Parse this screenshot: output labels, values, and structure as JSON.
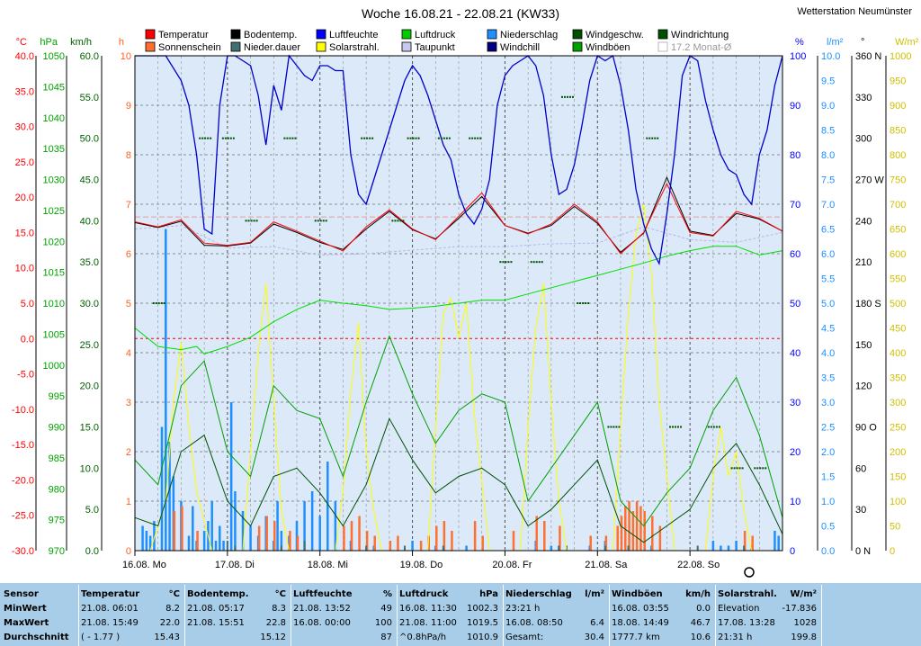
{
  "title": "Woche 16.08.21 - 22.08.21 (KW33)",
  "station": "Wetterstation Neumünster",
  "legend": [
    {
      "label": "Temperatur",
      "color": "#ff0000"
    },
    {
      "label": "Bodentemp.",
      "color": "#000000"
    },
    {
      "label": "Luftfeuchte",
      "color": "#0000ff"
    },
    {
      "label": "Luftdruck",
      "color": "#00cc00"
    },
    {
      "label": "Niederschlag",
      "color": "#1e8fff"
    },
    {
      "label": "Windgeschw.",
      "color": "#005000"
    },
    {
      "label": "Windrichtung",
      "color": "#005000"
    },
    {
      "label": "Sonnenschein",
      "color": "#ff7030"
    },
    {
      "label": "Nieder.dauer",
      "color": "#407070"
    },
    {
      "label": "Solarstrahl.",
      "color": "#ffff00"
    },
    {
      "label": "Taupunkt",
      "color": "#c8c8f0"
    },
    {
      "label": "Windchill",
      "color": "#000080"
    },
    {
      "label": "Windböen",
      "color": "#00a000"
    },
    {
      "label": "17.2 Monat-Ø",
      "color": "#ffffff"
    }
  ],
  "axis_units": {
    "temp": "°C",
    "press": "hPa",
    "wind": "km/h",
    "sun": "h",
    "hum": "%",
    "rain": "l/m²",
    "dir": "°",
    "solar": "W/m²"
  },
  "axes": {
    "temp": [
      "40.0",
      "35.0",
      "30.0",
      "25.0",
      "20.0",
      "15.0",
      "10.0",
      "5.0",
      "0.0",
      "-5.0",
      "-10.0",
      "-15.0",
      "-20.0",
      "-25.0",
      "-30.0"
    ],
    "press": [
      "1050",
      "1045",
      "1040",
      "1035",
      "1030",
      "1025",
      "1020",
      "1015",
      "1010",
      "1005",
      "1000",
      "995",
      "990",
      "985",
      "980",
      "975",
      "970"
    ],
    "wind": [
      "60.0",
      "55.0",
      "50.0",
      "45.0",
      "40.0",
      "35.0",
      "30.0",
      "25.0",
      "20.0",
      "15.0",
      "10.0",
      "5.0",
      "0.0"
    ],
    "sun": [
      "10",
      "9",
      "8",
      "7",
      "6",
      "5",
      "4",
      "3",
      "2",
      "1",
      "0"
    ],
    "hum": [
      "100",
      "90",
      "80",
      "70",
      "60",
      "50",
      "40",
      "30",
      "20",
      "10",
      "0"
    ],
    "rain": [
      "10.0",
      "9.5",
      "9.0",
      "8.5",
      "8.0",
      "7.5",
      "7.0",
      "6.5",
      "6.0",
      "5.5",
      "5.0",
      "4.5",
      "4.0",
      "3.5",
      "3.0",
      "2.5",
      "2.0",
      "1.5",
      "1.0",
      "0.5",
      "0.0"
    ],
    "dir": [
      "360 N",
      "330",
      "300",
      "270 W",
      "240",
      "210",
      "180 S",
      "150",
      "120",
      "90 O",
      "60",
      "30",
      "0 N"
    ],
    "solar": [
      "1000",
      "950",
      "900",
      "850",
      "800",
      "750",
      "700",
      "650",
      "600",
      "550",
      "500",
      "450",
      "400",
      "350",
      "300",
      "250",
      "200",
      "150",
      "100",
      "50",
      "0"
    ]
  },
  "chart_data": {
    "type": "line",
    "title": "Woche 16.08.21 - 22.08.21 (KW33)",
    "x_days": [
      "16.08.  Mo",
      "17.08.  Di",
      "18.08.  Mi",
      "19.08.  Do",
      "20.08.  Fr",
      "21.08.  Sa",
      "22.08.  So"
    ],
    "x_range_hours": [
      0,
      168
    ],
    "month_avg_temp": 17.2,
    "series": [
      {
        "name": "Temperatur",
        "unit": "°C",
        "x": [
          0,
          6,
          12,
          18,
          24,
          30,
          36,
          42,
          48,
          54,
          60,
          66,
          72,
          78,
          84,
          90,
          96,
          102,
          108,
          114,
          120,
          126,
          132,
          138,
          144,
          150,
          156,
          162,
          168
        ],
        "values": [
          16.5,
          15.8,
          16.8,
          13.5,
          13.2,
          13.6,
          16.5,
          15.2,
          13.8,
          12.4,
          15.8,
          18.2,
          15.5,
          14.0,
          17.3,
          20.6,
          16.0,
          14.8,
          16.2,
          19.0,
          16.5,
          12.0,
          15.0,
          21.9,
          15.0,
          14.5,
          18.0,
          17.0,
          15.2
        ]
      },
      {
        "name": "Bodentemp.",
        "unit": "°C",
        "x": [
          0,
          6,
          12,
          18,
          24,
          30,
          36,
          42,
          48,
          54,
          60,
          66,
          72,
          78,
          84,
          90,
          96,
          102,
          108,
          114,
          120,
          126,
          132,
          138,
          144,
          150,
          156,
          162,
          168
        ],
        "values": [
          16.4,
          15.7,
          16.6,
          13.2,
          13.1,
          13.5,
          16.2,
          15.0,
          13.6,
          12.6,
          15.5,
          18.0,
          15.4,
          14.1,
          17.0,
          20.1,
          16.0,
          14.9,
          16.0,
          18.7,
          16.3,
          12.2,
          14.9,
          22.8,
          15.2,
          14.6,
          17.7,
          16.9,
          15.2
        ]
      },
      {
        "name": "Taupunkt",
        "unit": "°C",
        "x": [
          0,
          12,
          24,
          36,
          48,
          60,
          72,
          84,
          96,
          108,
          120,
          132,
          144,
          156,
          168
        ],
        "values": [
          15.5,
          16.0,
          12.8,
          13.0,
          11.8,
          12.0,
          12.5,
          13.0,
          13.0,
          13.4,
          13.5,
          15.8,
          14.0,
          13.6,
          15.0
        ]
      },
      {
        "name": "Luftfeuchte",
        "unit": "%",
        "x": [
          0,
          4,
          8,
          12,
          14,
          16,
          18,
          20,
          22,
          24,
          26,
          28,
          30,
          32,
          34,
          36,
          38,
          40,
          42,
          44,
          46,
          48,
          50,
          52,
          54,
          56,
          58,
          60,
          62,
          64,
          66,
          68,
          70,
          72,
          74,
          76,
          78,
          80,
          82,
          84,
          86,
          88,
          90,
          92,
          94,
          96,
          98,
          100,
          102,
          104,
          106,
          108,
          110,
          112,
          114,
          116,
          118,
          120,
          122,
          124,
          126,
          128,
          130,
          132,
          134,
          136,
          138,
          140,
          142,
          144,
          146,
          148,
          150,
          152,
          154,
          156,
          158,
          160,
          162,
          164,
          166,
          168
        ],
        "values": [
          100,
          100,
          100,
          95,
          90,
          80,
          65,
          64,
          90,
          100,
          100,
          99,
          98,
          92,
          82,
          94,
          89,
          100,
          98,
          96,
          95,
          98,
          98,
          97,
          97,
          80,
          72,
          70,
          75,
          80,
          85,
          90,
          95,
          98,
          96,
          92,
          87,
          82,
          79,
          72,
          68,
          66,
          69,
          75,
          90,
          96,
          98,
          99,
          100,
          98,
          92,
          80,
          72,
          73,
          78,
          86,
          95,
          100,
          99,
          100,
          94,
          85,
          73,
          66,
          61,
          58,
          68,
          80,
          96,
          100,
          99,
          91,
          85,
          80,
          77,
          76,
          72,
          70,
          80,
          85,
          94,
          100
        ]
      },
      {
        "name": "Luftdruck",
        "unit": "hPa",
        "x": [
          0,
          6,
          12,
          16,
          18,
          24,
          30,
          36,
          42,
          48,
          54,
          60,
          66,
          72,
          78,
          84,
          90,
          96,
          102,
          108,
          114,
          120,
          126,
          132,
          138,
          144,
          150,
          156,
          162,
          168
        ],
        "values": [
          1006.0,
          1003.0,
          1002.5,
          1003.0,
          1001.8,
          1003.0,
          1004.5,
          1007.0,
          1009.0,
          1010.5,
          1010.0,
          1009.6,
          1009.0,
          1009.2,
          1009.5,
          1010.0,
          1010.5,
          1010.5,
          1011.5,
          1012.5,
          1013.5,
          1014.5,
          1015.5,
          1016.5,
          1017.6,
          1018.5,
          1019.2,
          1019.2,
          1017.8,
          1018.5
        ]
      },
      {
        "name": "Windgeschw.",
        "unit": "km/h",
        "x": [
          0,
          6,
          12,
          18,
          24,
          30,
          36,
          42,
          48,
          54,
          60,
          66,
          72,
          78,
          84,
          90,
          96,
          102,
          108,
          114,
          120,
          126,
          132,
          138,
          144,
          150,
          156,
          162,
          168
        ],
        "values": [
          4,
          3,
          12,
          14,
          6,
          3,
          9,
          10,
          7,
          3,
          8,
          16,
          11,
          7,
          9,
          10,
          8,
          3,
          5,
          8,
          11,
          3,
          1,
          3,
          5,
          10,
          13,
          8,
          2
        ]
      },
      {
        "name": "Windböen",
        "unit": "km/h",
        "x": [
          0,
          6,
          12,
          18,
          24,
          30,
          36,
          42,
          48,
          54,
          60,
          66,
          72,
          78,
          84,
          90,
          96,
          102,
          108,
          114,
          120,
          126,
          132,
          138,
          144,
          150,
          156,
          162,
          168
        ],
        "values": [
          11,
          8,
          20,
          23,
          12,
          9,
          20,
          17,
          16,
          9,
          18,
          26,
          19,
          13,
          17,
          19,
          18,
          6,
          10,
          14,
          18,
          6,
          3,
          7,
          10,
          17,
          21,
          14,
          4
        ]
      },
      {
        "name": "Solarstrahl.",
        "unit": "W/m²",
        "x": [
          0,
          4,
          8,
          10,
          12,
          14,
          16,
          18,
          20,
          22,
          24,
          28,
          30,
          32,
          34,
          36,
          38,
          40,
          44,
          48,
          52,
          54,
          56,
          58,
          60,
          62,
          64,
          68,
          72,
          76,
          78,
          80,
          82,
          84,
          86,
          88,
          92,
          96,
          100,
          102,
          104,
          106,
          108,
          110,
          112,
          116,
          120,
          124,
          126,
          128,
          130,
          132,
          134,
          136,
          140,
          144,
          148,
          150,
          152,
          154,
          156,
          158,
          160,
          164,
          168
        ],
        "values": [
          0,
          0,
          100,
          300,
          420,
          250,
          120,
          60,
          0,
          0,
          0,
          0,
          200,
          400,
          540,
          300,
          80,
          0,
          0,
          0,
          0,
          120,
          320,
          460,
          200,
          80,
          0,
          0,
          0,
          0,
          250,
          480,
          510,
          430,
          500,
          280,
          0,
          0,
          0,
          250,
          450,
          540,
          300,
          100,
          0,
          0,
          0,
          0,
          250,
          480,
          640,
          700,
          560,
          300,
          0,
          0,
          0,
          150,
          250,
          150,
          200,
          80,
          0,
          0,
          0
        ]
      },
      {
        "name": "Windrichtung",
        "unit": "°",
        "x": [
          6,
          18,
          24,
          30,
          40,
          48,
          60,
          68,
          72,
          80,
          88,
          96,
          104,
          112,
          116,
          124,
          134,
          140,
          150,
          156,
          162
        ],
        "values": [
          180,
          300,
          300,
          240,
          300,
          240,
          300,
          240,
          300,
          300,
          300,
          210,
          210,
          330,
          180,
          90,
          300,
          90,
          90,
          60,
          60
        ]
      },
      {
        "name": "Niederschlag",
        "unit": "l/m²",
        "x": [
          2,
          3,
          4,
          5,
          7,
          8,
          9,
          10,
          12,
          14,
          15,
          16,
          18,
          19,
          20,
          21,
          22,
          23,
          25,
          26,
          28,
          30,
          32,
          34,
          36,
          37,
          38,
          40,
          42,
          44,
          46,
          48,
          50,
          52,
          56,
          62,
          72,
          78,
          86,
          104,
          108,
          110,
          118,
          122,
          134,
          150,
          152,
          154,
          156,
          160,
          166,
          167
        ],
        "values": [
          0.5,
          0.4,
          0.3,
          0.6,
          2.5,
          6.5,
          2.2,
          1.5,
          1.0,
          0.3,
          0.9,
          0.2,
          0.4,
          0.6,
          1.0,
          0.2,
          0.5,
          0.2,
          3.0,
          1.2,
          0.8,
          0.5,
          0.3,
          0.7,
          0.2,
          1.0,
          0.4,
          0.3,
          0.6,
          1.0,
          1.2,
          0.7,
          1.8,
          1.0,
          0.2,
          0.1,
          0.2,
          0.1,
          0.1,
          0.2,
          0.1,
          0.1,
          0.1,
          0.2,
          0.1,
          0.2,
          0.1,
          0.1,
          0.2,
          0.1,
          0.4,
          0.3
        ]
      },
      {
        "name": "Sonnenschein",
        "unit": "h",
        "x": [
          10,
          12,
          16,
          32,
          34,
          36,
          40,
          42,
          54,
          56,
          58,
          60,
          62,
          66,
          68,
          74,
          76,
          78,
          80,
          82,
          88,
          90,
          98,
          104,
          106,
          110,
          118,
          122,
          125,
          126,
          127,
          128,
          129,
          130,
          131,
          132,
          134,
          136,
          158,
          160
        ],
        "values": [
          0.8,
          0.9,
          0.4,
          0.5,
          0.7,
          0.6,
          0.4,
          0.3,
          0.5,
          0.6,
          0.7,
          0.4,
          0.3,
          0.2,
          0.3,
          0.2,
          0.3,
          0.5,
          0.6,
          0.4,
          0.6,
          0.3,
          0.4,
          0.7,
          0.6,
          0.5,
          0.3,
          0.3,
          0.5,
          0.7,
          0.9,
          1.0,
          0.8,
          1.0,
          0.9,
          0.8,
          0.7,
          0.5,
          0.4,
          0.3
        ]
      },
      {
        "name": "Nieder.dauer",
        "unit": "h",
        "x": [
          24,
          26,
          38,
          44,
          60,
          70,
          80,
          110,
          112,
          122,
          128,
          146,
          158
        ],
        "values": [
          0.2,
          0.1,
          0.1,
          0.2,
          0.1,
          0.1,
          0.1,
          0.1,
          0.1,
          0.1,
          0.1,
          0.1,
          0.1
        ]
      }
    ]
  },
  "table": {
    "row_labels": [
      "Sensor",
      "MinWert",
      "MaxWert",
      "Durchschnitt"
    ],
    "columns": [
      {
        "header": "Temperatur",
        "unit": "°C",
        "rows": [
          [
            "21.08.  06:01",
            "8.2"
          ],
          [
            "21.08.  15:49",
            "22.0"
          ],
          [
            "( - 1.77 )",
            "15.43"
          ]
        ]
      },
      {
        "header": "Bodentemp.",
        "unit": "°C",
        "rows": [
          [
            "21.08.  05:17",
            "8.3"
          ],
          [
            "21.08.  15:51",
            "22.8"
          ],
          [
            "",
            "15.12"
          ]
        ]
      },
      {
        "header": "Luftfeuchte",
        "unit": "%",
        "rows": [
          [
            "21.08.  13:52",
            "49"
          ],
          [
            "16.08.  00:00",
            "100"
          ],
          [
            "",
            "87"
          ]
        ]
      },
      {
        "header": "Luftdruck",
        "unit": "hPa",
        "rows": [
          [
            "16.08.  11:30",
            "1002.3"
          ],
          [
            "21.08.  11:00",
            "1019.5"
          ],
          [
            "^0.8hPa/h",
            "1010.9"
          ]
        ]
      },
      {
        "header": "Niederschlag",
        "unit": "l/m²",
        "rows": [
          [
            "23:21 h",
            ""
          ],
          [
            "16.08.  08:50",
            "6.4"
          ],
          [
            "Gesamt:",
            "30.4"
          ]
        ]
      },
      {
        "header": "Windböen",
        "unit": "km/h",
        "rows": [
          [
            "16.08.  03:55",
            "0.0"
          ],
          [
            "18.08.  14:49",
            "46.7"
          ],
          [
            "1777.7 km",
            "10.6"
          ]
        ]
      },
      {
        "header": "Solarstrahl.",
        "unit": "W/m²",
        "rows": [
          [
            "Elevation",
            "-17.836"
          ],
          [
            "17.08.  13:28",
            "1028"
          ],
          [
            "21:31 h",
            "199.8"
          ]
        ]
      }
    ]
  }
}
